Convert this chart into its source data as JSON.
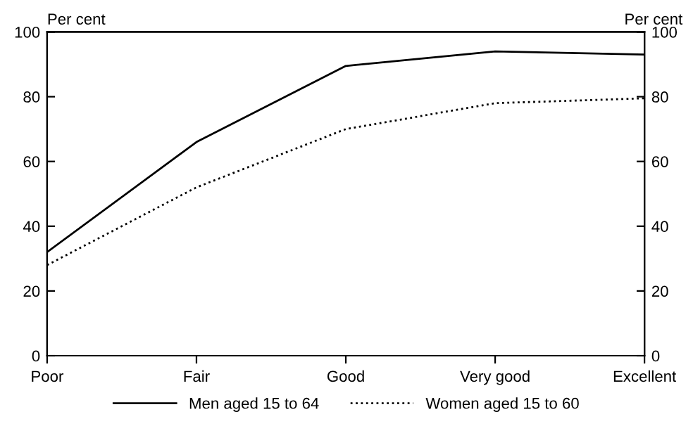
{
  "chart_data": {
    "type": "line",
    "ylabel": "Per cent",
    "y2label": "Per cent",
    "categories": [
      "Poor",
      "Fair",
      "Good",
      "Very good",
      "Excellent"
    ],
    "series": [
      {
        "name": "Men aged 15 to 64",
        "color": "#000000",
        "line_style": "solid",
        "values": [
          32,
          66,
          89.5,
          94,
          93
        ]
      },
      {
        "name": "Women aged 15 to 60",
        "color": "#000000",
        "line_style": "dotted",
        "values": [
          28,
          52,
          70,
          78,
          79.5
        ]
      }
    ],
    "ylim": [
      0,
      100
    ],
    "yticks": [
      0,
      20,
      40,
      60,
      80,
      100
    ],
    "y2lim": [
      0,
      100
    ],
    "y2ticks": [
      0,
      20,
      40,
      60,
      80,
      100
    ],
    "grid": false,
    "legend": "bottom",
    "marker": "none"
  }
}
